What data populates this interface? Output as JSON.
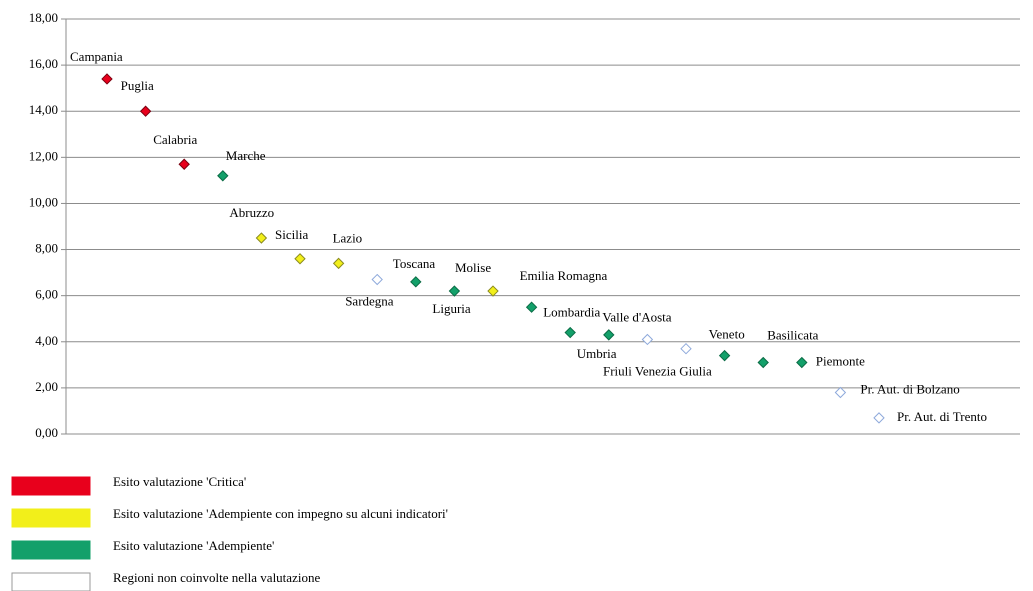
{
  "chart_data": {
    "type": "scatter",
    "categories": [
      "Campania",
      "Puglia",
      "Calabria",
      "Marche",
      "Abruzzo",
      "Sicilia",
      "Lazio",
      "Sardegna",
      "Toscana",
      "Liguria",
      "Molise",
      "Emilia Romagna",
      "Lombardia",
      "Umbria",
      "Valle d'Aosta",
      "Friuli Venezia Giulia",
      "Veneto",
      "Basilicata",
      "Piemonte",
      "Pr. Aut. di Bolzano",
      "Pr. Aut. di Trento"
    ],
    "series": [
      {
        "name": "Esito valutazione 'Critica'",
        "color": "#e8001c",
        "edgecolor": "#7a0010",
        "values": [
          15.4,
          14.0,
          11.7,
          null,
          null,
          null,
          null,
          null,
          null,
          null,
          null,
          null,
          null,
          null,
          null,
          null,
          null,
          null,
          null,
          null,
          null
        ]
      },
      {
        "name": "Esito valutazione 'Adempiente con impegno su alcuni indicatori'",
        "color": "#f2ef1a",
        "edgecolor": "#8a8a20",
        "values": [
          null,
          null,
          null,
          null,
          8.5,
          7.6,
          7.4,
          null,
          null,
          null,
          6.2,
          null,
          null,
          null,
          null,
          null,
          null,
          null,
          null,
          null,
          null
        ]
      },
      {
        "name": "Esito valutazione 'Adempiente'",
        "color": "#13a06a",
        "edgecolor": "#0b6b45",
        "values": [
          null,
          null,
          null,
          11.2,
          null,
          null,
          null,
          null,
          6.6,
          6.2,
          null,
          5.5,
          4.4,
          4.3,
          null,
          null,
          3.4,
          3.1,
          3.1,
          null,
          null
        ]
      },
      {
        "name": "Regioni non coinvolte nella valutazione",
        "color": "#ffffff",
        "edgecolor": "#8ea9db",
        "values": [
          null,
          null,
          null,
          null,
          null,
          null,
          null,
          6.7,
          null,
          null,
          null,
          null,
          null,
          null,
          4.1,
          3.7,
          null,
          null,
          null,
          1.8,
          0.7
        ]
      }
    ],
    "ylim": [
      0,
      18
    ],
    "yticks": [
      {
        "value": 0,
        "label": "0,00"
      },
      {
        "value": 2,
        "label": "2,00"
      },
      {
        "value": 4,
        "label": "4,00"
      },
      {
        "value": 6,
        "label": "6,00"
      },
      {
        "value": 8,
        "label": "8,00"
      },
      {
        "value": 10,
        "label": "10,00"
      },
      {
        "value": 12,
        "label": "12,00"
      },
      {
        "value": 14,
        "label": "14,00"
      },
      {
        "value": 16,
        "label": "16,00"
      },
      {
        "value": 18,
        "label": "18,00"
      }
    ],
    "grid": true
  }
}
